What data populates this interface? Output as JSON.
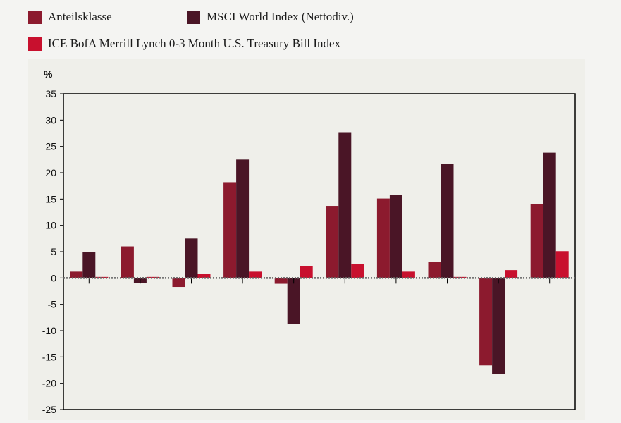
{
  "legend": [
    {
      "label": "Anteilsklasse",
      "color": "#8c1a2e"
    },
    {
      "label": "MSCI World Index (Nettodiv.)",
      "color": "#4a1526"
    },
    {
      "label": "ICE BofA Merrill Lynch 0-3 Month U.S. Treasury Bill Index",
      "color": "#c8102e"
    }
  ],
  "chart_data": {
    "type": "bar",
    "ylabel": "%",
    "ylim": [
      -25,
      35
    ],
    "yticks": [
      "35",
      "30",
      "25",
      "20",
      "15",
      "10",
      "5",
      "0",
      "-5",
      "-10",
      "-15",
      "-20",
      "-25"
    ],
    "categories": [
      "",
      "",
      "",
      "",
      "",
      "",
      "",
      "",
      "",
      ""
    ],
    "grid": false,
    "legend_position": "top-left",
    "series": [
      {
        "name": "Anteilsklasse",
        "color": "#8c1a2e",
        "values": [
          1.2,
          6.0,
          -1.7,
          18.2,
          -1.1,
          13.7,
          15.1,
          3.1,
          -16.6,
          14.0
        ]
      },
      {
        "name": "MSCI World Index (Nettodiv.)",
        "color": "#4a1526",
        "values": [
          5.0,
          -0.9,
          7.5,
          22.5,
          -8.7,
          27.7,
          15.8,
          21.7,
          -18.2,
          23.8
        ]
      },
      {
        "name": "ICE BofA Merrill Lynch 0-3 Month U.S. Treasury Bill Index",
        "color": "#c8102e",
        "values": [
          0.2,
          0.2,
          0.8,
          1.2,
          2.2,
          2.7,
          1.2,
          0.2,
          1.5,
          5.1
        ]
      }
    ]
  }
}
